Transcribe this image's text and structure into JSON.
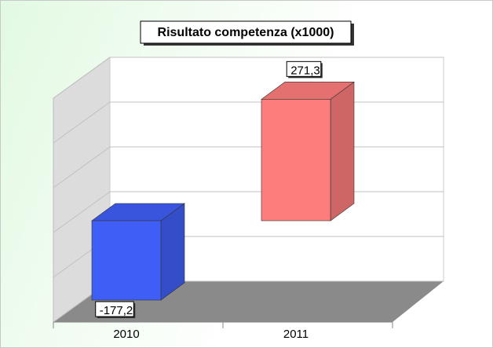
{
  "chart_data": {
    "type": "bar3d",
    "title": "Risultato competenza (x1000)",
    "categories": [
      "2010",
      "2011"
    ],
    "values": [
      -177.2,
      271.3
    ],
    "value_labels": [
      "-177,2",
      "271,3"
    ],
    "colors": [
      "#3f5ef5",
      "#fd7c7c"
    ],
    "ylim": [
      -200,
      300
    ],
    "yticks": [
      -200,
      -100,
      0,
      100,
      200,
      300
    ],
    "grid": true
  }
}
